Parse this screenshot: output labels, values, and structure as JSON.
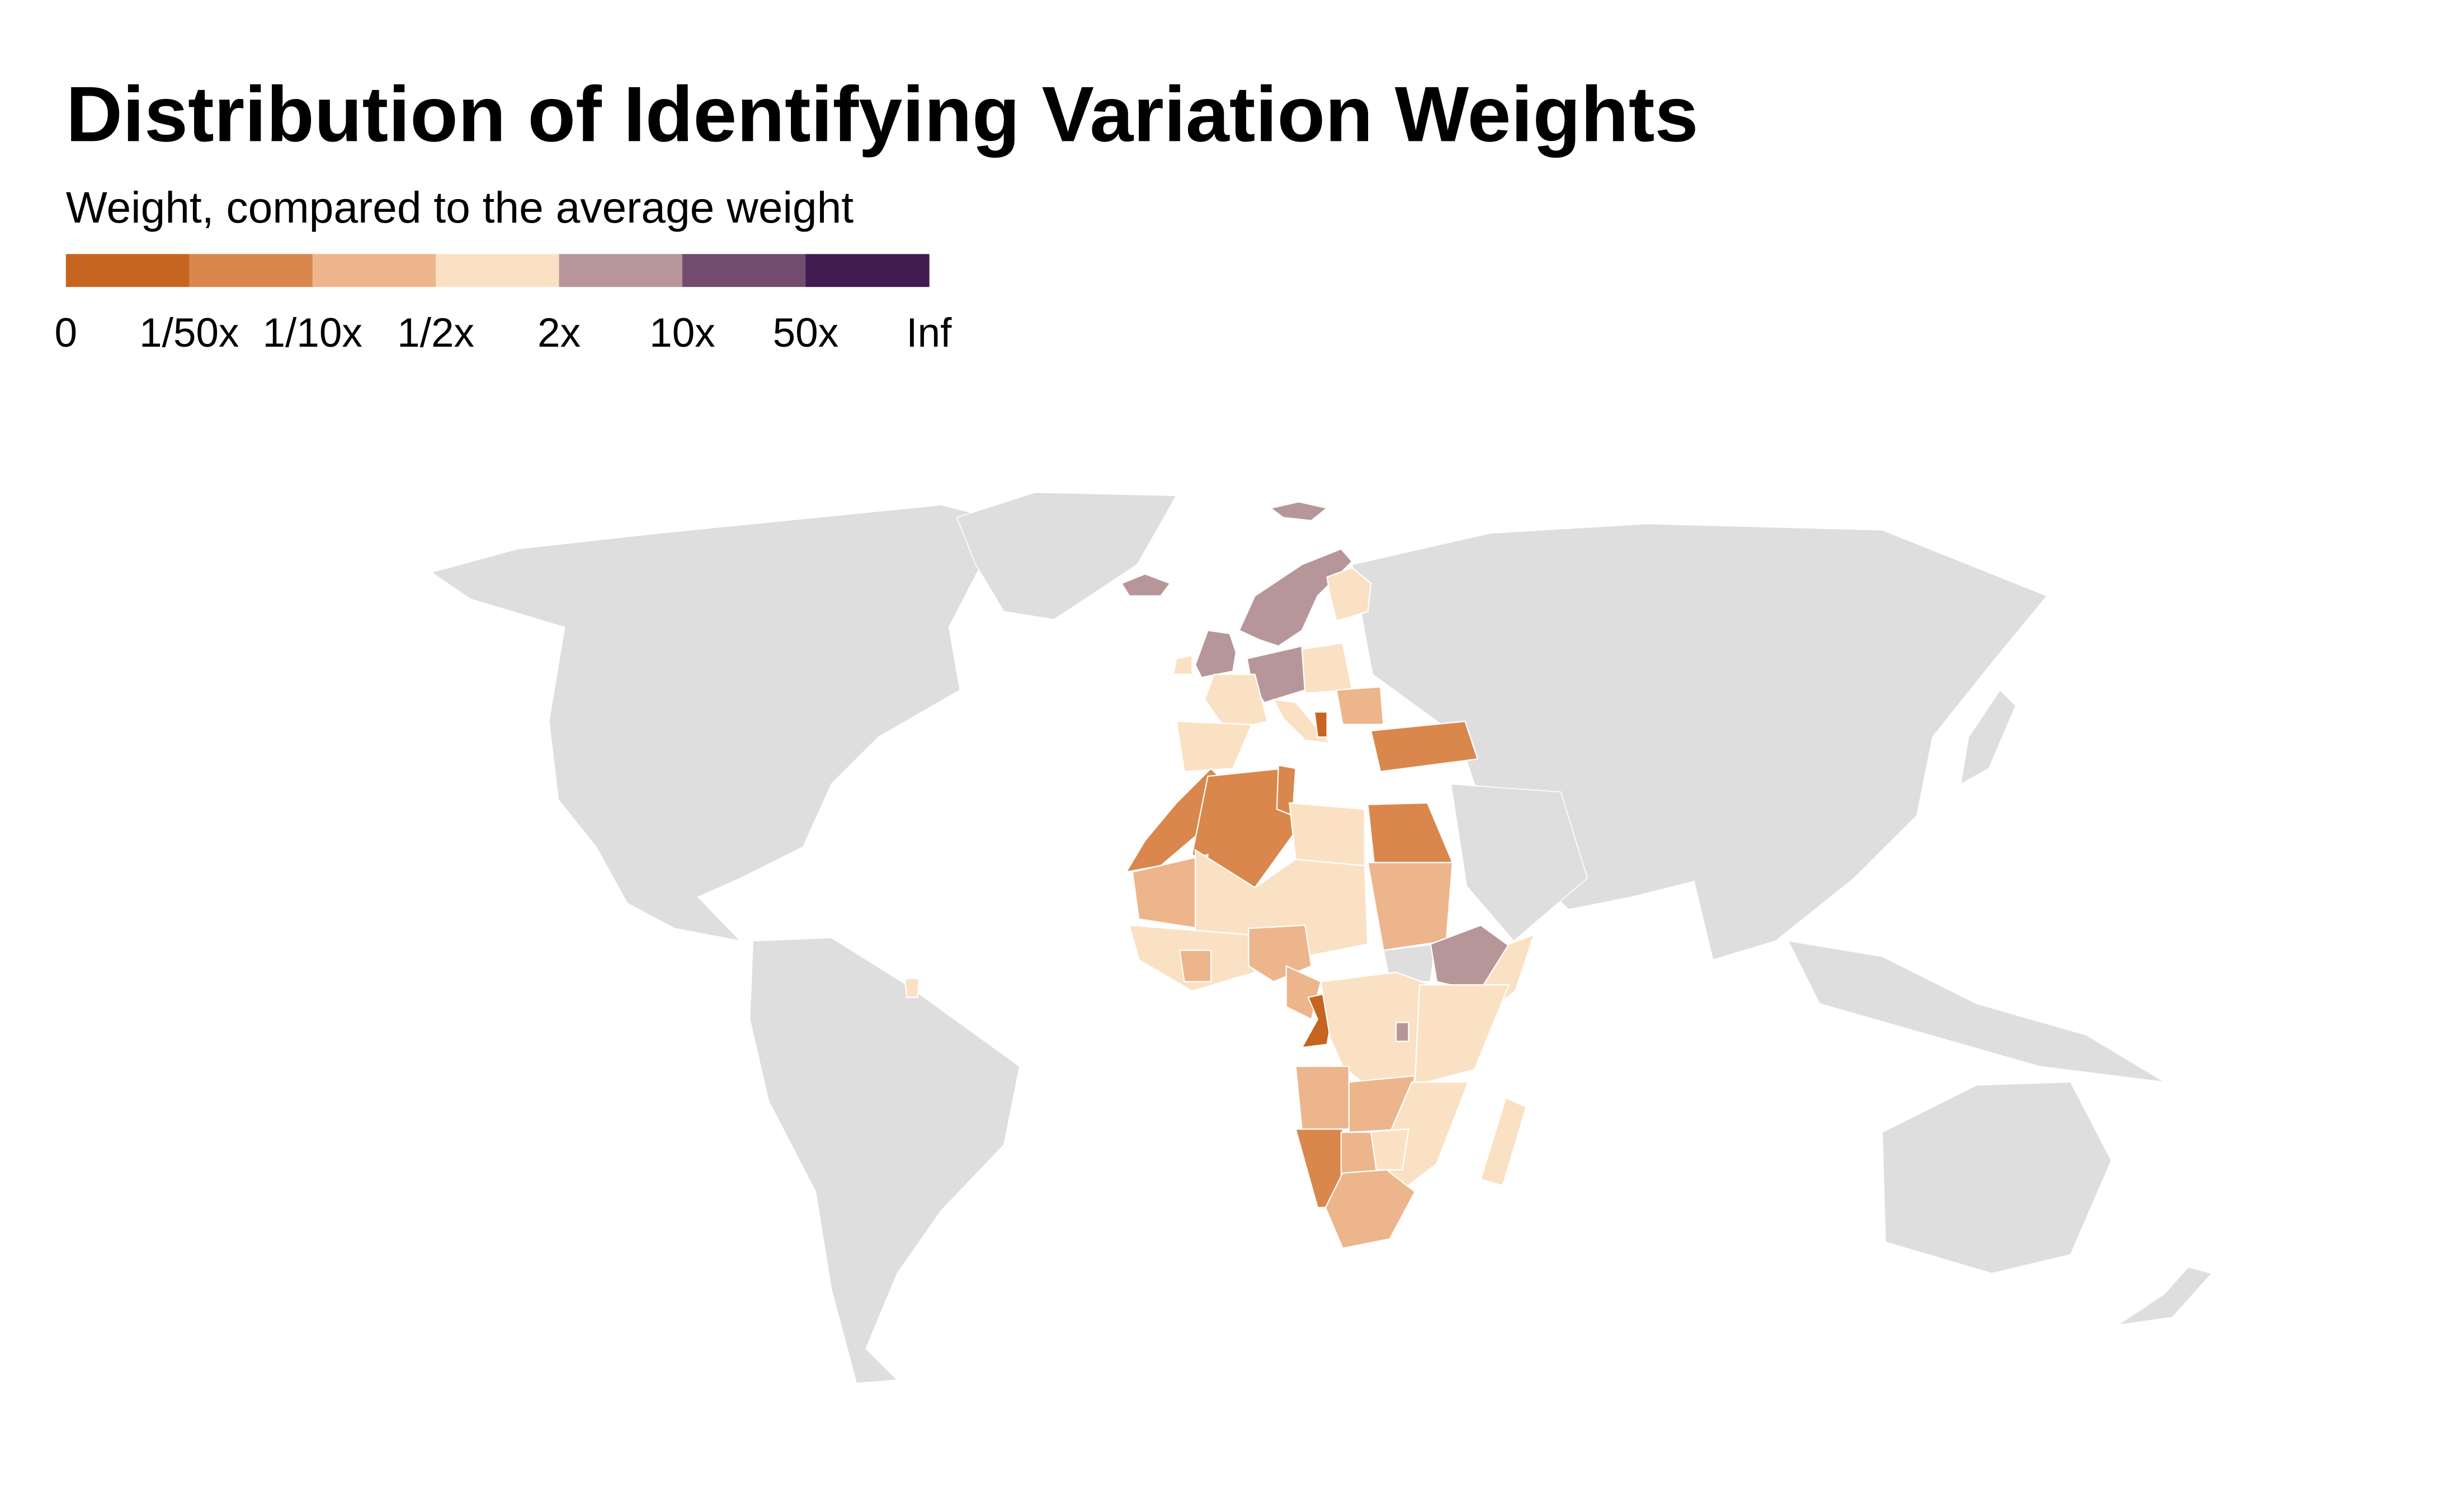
{
  "title": "Distribution of Identifying Variation Weights",
  "subtitle": "Weight, compared to the average weight",
  "legend": {
    "bins": [
      {
        "color": "#c6651f"
      },
      {
        "color": "#d9874c"
      },
      {
        "color": "#edb58b"
      },
      {
        "color": "#fae1c3"
      },
      {
        "color": "#b7969a"
      },
      {
        "color": "#724d70"
      },
      {
        "color": "#411c50"
      }
    ],
    "labels": [
      "0",
      "1/50x",
      "1/10x",
      "1/2x",
      "2x",
      "10x",
      "50x",
      "Inf"
    ]
  },
  "no_data_color": "#dedede",
  "chart_data": {
    "type": "choropleth",
    "title": "Distribution of Identifying Variation Weights",
    "legend_title": "Weight, compared to the average weight",
    "legend_placement": "top-left",
    "bin_edges": [
      "0",
      "1/50x",
      "1/10x",
      "1/2x",
      "2x",
      "10x",
      "50x",
      "Inf"
    ],
    "regions": [
      {
        "name": "Iceland",
        "bin": 4
      },
      {
        "name": "Svalbard",
        "bin": 4
      },
      {
        "name": "Norway-Sweden",
        "bin": 4
      },
      {
        "name": "Finland",
        "bin": 3
      },
      {
        "name": "United Kingdom",
        "bin": 4
      },
      {
        "name": "Ireland",
        "bin": 3
      },
      {
        "name": "Germany-Benelux-Switzerland",
        "bin": 4
      },
      {
        "name": "Poland-Central Europe",
        "bin": 3
      },
      {
        "name": "France",
        "bin": 3
      },
      {
        "name": "Iberia",
        "bin": 3
      },
      {
        "name": "Italy",
        "bin": 3
      },
      {
        "name": "Romania-Bulgaria",
        "bin": 2
      },
      {
        "name": "Albania",
        "bin": 0
      },
      {
        "name": "Turkey",
        "bin": 1
      },
      {
        "name": "Morocco",
        "bin": 1
      },
      {
        "name": "Algeria",
        "bin": 1
      },
      {
        "name": "Tunisia",
        "bin": 1
      },
      {
        "name": "Libya",
        "bin": 3
      },
      {
        "name": "Egypt",
        "bin": 1
      },
      {
        "name": "Mauritania",
        "bin": 2
      },
      {
        "name": "Sahel",
        "bin": 3
      },
      {
        "name": "Sudan",
        "bin": 2
      },
      {
        "name": "Ethiopia",
        "bin": 4
      },
      {
        "name": "Somalia",
        "bin": 3
      },
      {
        "name": "West Africa",
        "bin": 3
      },
      {
        "name": "Cote d'Ivoire",
        "bin": 2
      },
      {
        "name": "Nigeria",
        "bin": 2
      },
      {
        "name": "Cameroon",
        "bin": 2
      },
      {
        "name": "Congo",
        "bin": 0
      },
      {
        "name": "DR Congo-CAR",
        "bin": 3
      },
      {
        "name": "Kenya-Tanzania",
        "bin": 3
      },
      {
        "name": "Burundi",
        "bin": 4
      },
      {
        "name": "Angola",
        "bin": 2
      },
      {
        "name": "Zambia",
        "bin": 2
      },
      {
        "name": "Mozambique-Malawi",
        "bin": 3
      },
      {
        "name": "Zimbabwe",
        "bin": 3
      },
      {
        "name": "Namibia",
        "bin": 1
      },
      {
        "name": "Botswana",
        "bin": 2
      },
      {
        "name": "South Africa",
        "bin": 2
      },
      {
        "name": "Madagascar",
        "bin": 3
      },
      {
        "name": "French Guiana",
        "bin": 3
      }
    ]
  }
}
